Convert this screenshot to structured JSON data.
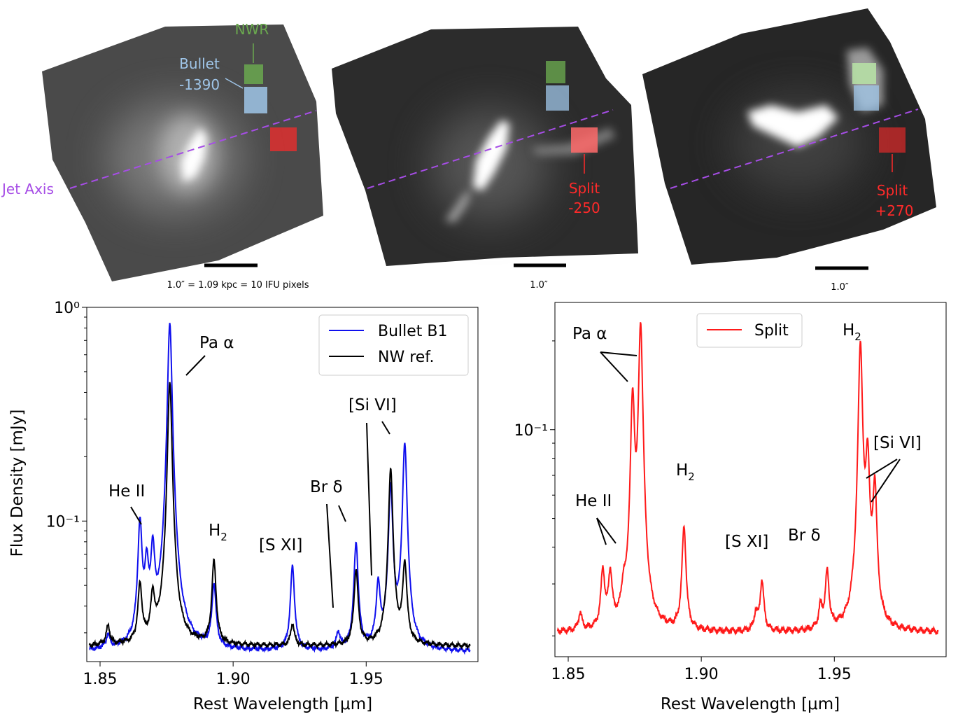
{
  "images": [
    {
      "labels": {
        "nwr": "NWR",
        "bullet": [
          "Bullet",
          "-1390"
        ],
        "jet_axis": "Jet Axis",
        "scale": "1.0″ = 1.09 kpc = 10 IFU pixels"
      }
    },
    {
      "labels": {
        "split": [
          "Split",
          "-250"
        ],
        "scale": "1.0″"
      }
    },
    {
      "labels": {
        "split": [
          "Split",
          "+270"
        ],
        "scale": "1.0″"
      }
    }
  ],
  "colors": {
    "nwr": "#6aa84f",
    "bullet": "#9fc5e8",
    "split": "#ff2a2a",
    "jet_axis": "#a64de6",
    "bullet_series": "#1010ee",
    "nw_series": "#000000",
    "split_series": "#ff1a1a"
  },
  "chart_data": [
    {
      "type": "line",
      "xlabel": "Rest Wavelength [μm]",
      "ylabel": "Flux Density [mJy]",
      "xlim": [
        1.845,
        1.992
      ],
      "ylim": [
        0.022,
        1.0
      ],
      "yscale": "log",
      "xticks": [
        "1.85",
        "1.90",
        "1.95"
      ],
      "yticks": [
        "10⁻¹",
        "10⁰"
      ],
      "legend_position": "top-right",
      "series": [
        {
          "name": "Bullet B1",
          "color": "#1010ee",
          "baseline": 0.0245,
          "peaks": [
            {
              "x": 1.853,
              "a": 0.004
            },
            {
              "x": 1.865,
              "a": 0.072
            },
            {
              "x": 1.8675,
              "a": 0.033
            },
            {
              "x": 1.8698,
              "a": 0.044
            },
            {
              "x": 1.8762,
              "a": 0.82
            },
            {
              "x": 1.8928,
              "a": 0.025
            },
            {
              "x": 1.9223,
              "a": 0.037
            },
            {
              "x": 1.9395,
              "a": 0.005
            },
            {
              "x": 1.9462,
              "a": 0.054
            },
            {
              "x": 1.9545,
              "a": 0.025
            },
            {
              "x": 1.9592,
              "a": 0.122
            },
            {
              "x": 1.9645,
              "a": 0.205
            }
          ]
        },
        {
          "name": "NW ref.",
          "color": "#000000",
          "baseline": 0.026,
          "peaks": [
            {
              "x": 1.853,
              "a": 0.006
            },
            {
              "x": 1.865,
              "a": 0.024
            },
            {
              "x": 1.8698,
              "a": 0.017
            },
            {
              "x": 1.8762,
              "a": 0.42
            },
            {
              "x": 1.8928,
              "a": 0.039
            },
            {
              "x": 1.9223,
              "a": 0.007
            },
            {
              "x": 1.9462,
              "a": 0.033
            },
            {
              "x": 1.9592,
              "a": 0.15
            },
            {
              "x": 1.9645,
              "a": 0.037
            }
          ]
        }
      ],
      "annotations": [
        {
          "text": "Pa α"
        },
        {
          "text": "He II"
        },
        {
          "text": "H",
          "sub": "2"
        },
        {
          "text": "[S XI]"
        },
        {
          "text": "Br δ"
        },
        {
          "text": "[Si VI]"
        }
      ]
    },
    {
      "type": "line",
      "xlabel": "Rest  Wavelength [μm]",
      "ylabel": "",
      "xlim": [
        1.845,
        1.992
      ],
      "ylim": [
        0.017,
        0.27
      ],
      "yscale": "log",
      "xticks": [
        "1.85",
        "1.90",
        "1.95"
      ],
      "yticks": [
        "10⁻¹"
      ],
      "legend_position": "top-left",
      "series": [
        {
          "name": "Split",
          "color": "#ff1a1a",
          "baseline": 0.0205,
          "peaks": [
            {
              "x": 1.8545,
              "a": 0.003
            },
            {
              "x": 1.863,
              "a": 0.012
            },
            {
              "x": 1.8658,
              "a": 0.011
            },
            {
              "x": 1.8708,
              "a": 0.005
            },
            {
              "x": 1.8742,
              "a": 0.105
            },
            {
              "x": 1.8772,
              "a": 0.205
            },
            {
              "x": 1.8935,
              "a": 0.026
            },
            {
              "x": 1.9205,
              "a": 0.003
            },
            {
              "x": 1.9228,
              "a": 0.01
            },
            {
              "x": 1.9448,
              "a": 0.004
            },
            {
              "x": 1.9473,
              "a": 0.012
            },
            {
              "x": 1.9598,
              "a": 0.175
            },
            {
              "x": 1.9625,
              "a": 0.057
            },
            {
              "x": 1.9652,
              "a": 0.042
            }
          ]
        }
      ],
      "annotations": [
        {
          "text": "Pa α"
        },
        {
          "text": "He II"
        },
        {
          "text": "H",
          "sub": "2"
        },
        {
          "text": "[S XI]"
        },
        {
          "text": "Br δ"
        },
        {
          "text": "H",
          "sub": "2"
        },
        {
          "text": "[Si VI]"
        }
      ]
    }
  ]
}
